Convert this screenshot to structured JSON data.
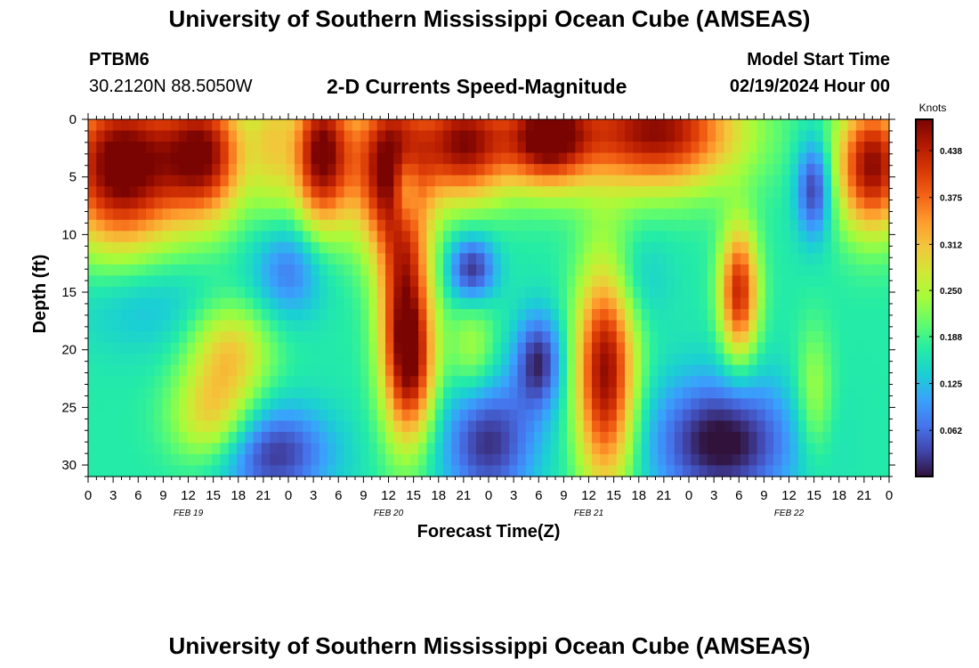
{
  "header": {
    "title": "University of Southern Mississippi Ocean Cube (AMSEAS)",
    "station": "PTBM6",
    "coords": "30.2120N  88.5050W",
    "model_start_label": "Model Start Time",
    "model_start_value": "02/19/2024 Hour 00",
    "footer_title": "University of Southern Mississippi Ocean Cube (AMSEAS)"
  },
  "chart_data": {
    "type": "heatmap",
    "title": "2-D Currents Speed-Magnitude",
    "xlabel": "Forecast Time(Z)",
    "ylabel": "Depth (ft)",
    "x_ticks": [
      "0",
      "3",
      "6",
      "9",
      "12",
      "15",
      "18",
      "21",
      "0",
      "3",
      "6",
      "9",
      "12",
      "15",
      "18",
      "21",
      "0",
      "3",
      "6",
      "9",
      "12",
      "15",
      "18",
      "21",
      "0",
      "3",
      "6",
      "9",
      "12",
      "15",
      "18",
      "21",
      "0"
    ],
    "date_labels": [
      "FEB 19",
      "FEB 20",
      "FEB 21",
      "FEB 22"
    ],
    "x_range_hours": [
      0,
      96
    ],
    "y_ticks": [
      0,
      5,
      10,
      15,
      20,
      25,
      30
    ],
    "y_range_ft": [
      0,
      31
    ],
    "y_inverted": true,
    "colorbar": {
      "label": "Knots",
      "ticks": [
        "0.438",
        "0.375",
        "0.312",
        "0.250",
        "0.188",
        "0.125",
        "0.062"
      ],
      "range": [
        0.0,
        0.48
      ],
      "colors": [
        "#30123b",
        "#4145ab",
        "#4675ed",
        "#39a2fc",
        "#1bcfd4",
        "#24eca6",
        "#61fc6c",
        "#a4fc3b",
        "#d1e834",
        "#f3c63a",
        "#fe9b2d",
        "#f36315",
        "#d93806",
        "#b11901",
        "#7a0402"
      ]
    },
    "blobs": [
      {
        "t": 4,
        "d": 4,
        "sx": 5,
        "sy": 5,
        "v": 0.34
      },
      {
        "t": 14,
        "d": 3,
        "sx": 3.5,
        "sy": 4,
        "v": 0.28
      },
      {
        "t": 22,
        "d": 1.5,
        "sx": 1.8,
        "sy": 5,
        "v": 0.1
      },
      {
        "t": 28,
        "d": 3,
        "sx": 2.5,
        "sy": 4.5,
        "v": 0.32
      },
      {
        "t": 36,
        "d": 4,
        "sx": 3,
        "sy": 5,
        "v": 0.3
      },
      {
        "t": 45,
        "d": 2,
        "sx": 4,
        "sy": 3.5,
        "v": 0.3
      },
      {
        "t": 55,
        "d": 1.5,
        "sx": 3.5,
        "sy": 3,
        "v": 0.3
      },
      {
        "t": 68,
        "d": 1,
        "sx": 7,
        "sy": 3.5,
        "v": 0.3
      },
      {
        "t": 94,
        "d": 4,
        "sx": 3,
        "sy": 4,
        "v": 0.3
      },
      {
        "t": 38,
        "d": 17,
        "sx": 2.2,
        "sy": 7,
        "v": 0.28
      },
      {
        "t": 39,
        "d": 22,
        "sx": 2,
        "sy": 4,
        "v": 0.12
      },
      {
        "t": 62,
        "d": 22,
        "sx": 2.5,
        "sy": 7,
        "v": 0.3
      },
      {
        "t": 78,
        "d": 15,
        "sx": 1.6,
        "sy": 4,
        "v": 0.26
      },
      {
        "t": 17,
        "d": 20,
        "sx": 3.5,
        "sy": 3,
        "v": 0.13
      },
      {
        "t": 15,
        "d": 26,
        "sx": 3.5,
        "sy": 3,
        "v": 0.14
      },
      {
        "t": 46,
        "d": 20,
        "sx": 2,
        "sy": 3,
        "v": 0.08
      },
      {
        "t": 87,
        "d": 24,
        "sx": 1.5,
        "sy": 4,
        "v": 0.08
      },
      {
        "t": 22,
        "d": 29,
        "sx": 5,
        "sy": 3,
        "v": -0.15
      },
      {
        "t": 48,
        "d": 28,
        "sx": 4,
        "sy": 4,
        "v": -0.15
      },
      {
        "t": 76,
        "d": 28,
        "sx": 6,
        "sy": 4,
        "v": -0.18
      },
      {
        "t": 54,
        "d": 21,
        "sx": 2,
        "sy": 3,
        "v": -0.15
      },
      {
        "t": 46,
        "d": 13,
        "sx": 2,
        "sy": 2,
        "v": -0.15
      },
      {
        "t": 38,
        "d": 6,
        "sx": 1.2,
        "sy": 2.5,
        "v": -0.15
      },
      {
        "t": 87,
        "d": 6,
        "sx": 1.5,
        "sy": 3,
        "v": -0.15
      },
      {
        "t": 24,
        "d": 13,
        "sx": 3,
        "sy": 3,
        "v": -0.1
      },
      {
        "t": 7,
        "d": 16,
        "sx": 6,
        "sy": 3,
        "v": -0.05
      },
      {
        "t": 65,
        "d": 14,
        "sx": 3,
        "sy": 3,
        "v": -0.05
      }
    ],
    "base_value": 0.17
  }
}
